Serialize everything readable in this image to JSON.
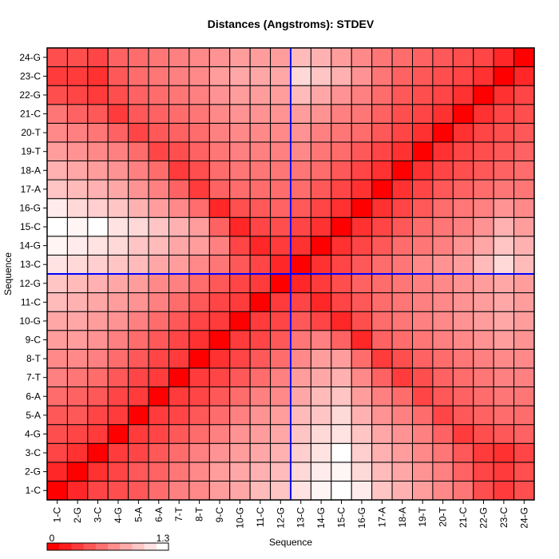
{
  "chart_data": {
    "type": "heatmap",
    "title": "Distances (Angstroms):  STDEV",
    "xlabel": "Sequence",
    "ylabel": "Sequence",
    "labels": [
      "1-C",
      "2-G",
      "3-C",
      "4-G",
      "5-A",
      "6-A",
      "7-T",
      "8-T",
      "9-C",
      "10-G",
      "11-C",
      "12-G",
      "13-C",
      "14-G",
      "15-C",
      "16-G",
      "17-A",
      "18-A",
      "19-T",
      "20-T",
      "21-C",
      "22-G",
      "23-C",
      "24-G"
    ],
    "value_range": [
      0,
      1.3
    ],
    "color_low": "#ff0000",
    "color_high": "#ffffff",
    "colorbar": {
      "min_label": "0",
      "max_label": "1.3"
    },
    "divider": {
      "after_index": 11,
      "color": "#0000ff"
    },
    "matrix": [
      [
        0.0,
        0.2,
        0.35,
        0.4,
        0.45,
        0.55,
        0.65,
        0.7,
        0.8,
        0.85,
        0.95,
        1.0,
        1.15,
        1.25,
        1.3,
        1.2,
        1.0,
        0.9,
        0.8,
        0.7,
        0.6,
        0.4,
        0.3,
        0.4
      ],
      [
        0.2,
        0.0,
        0.25,
        0.35,
        0.45,
        0.5,
        0.6,
        0.7,
        0.8,
        0.85,
        0.9,
        0.95,
        1.1,
        1.2,
        1.25,
        1.1,
        0.95,
        0.85,
        0.75,
        0.65,
        0.5,
        0.35,
        0.3,
        0.4
      ],
      [
        0.35,
        0.25,
        0.0,
        0.3,
        0.35,
        0.45,
        0.55,
        0.65,
        0.75,
        0.8,
        0.85,
        0.9,
        1.05,
        1.15,
        1.3,
        1.05,
        0.9,
        0.8,
        0.7,
        0.6,
        0.45,
        0.3,
        0.25,
        0.35
      ],
      [
        0.4,
        0.35,
        0.3,
        0.0,
        0.3,
        0.35,
        0.45,
        0.55,
        0.65,
        0.75,
        0.8,
        0.85,
        1.0,
        1.1,
        1.15,
        1.0,
        0.85,
        0.75,
        0.65,
        0.5,
        0.3,
        0.4,
        0.45,
        0.5
      ],
      [
        0.45,
        0.45,
        0.35,
        0.3,
        0.0,
        0.3,
        0.35,
        0.45,
        0.55,
        0.65,
        0.75,
        0.8,
        0.95,
        1.0,
        1.1,
        0.9,
        0.75,
        0.65,
        0.55,
        0.35,
        0.45,
        0.5,
        0.55,
        0.55
      ],
      [
        0.55,
        0.5,
        0.45,
        0.35,
        0.3,
        0.0,
        0.3,
        0.35,
        0.45,
        0.55,
        0.65,
        0.7,
        0.85,
        0.95,
        1.0,
        0.8,
        0.65,
        0.55,
        0.35,
        0.45,
        0.5,
        0.55,
        0.6,
        0.6
      ],
      [
        0.65,
        0.6,
        0.55,
        0.45,
        0.35,
        0.3,
        0.0,
        0.3,
        0.35,
        0.45,
        0.55,
        0.65,
        0.8,
        0.85,
        0.9,
        0.7,
        0.5,
        0.3,
        0.4,
        0.5,
        0.55,
        0.6,
        0.65,
        0.65
      ],
      [
        0.7,
        0.7,
        0.65,
        0.55,
        0.45,
        0.35,
        0.3,
        0.0,
        0.25,
        0.35,
        0.45,
        0.55,
        0.7,
        0.8,
        0.8,
        0.55,
        0.3,
        0.4,
        0.5,
        0.55,
        0.6,
        0.65,
        0.7,
        0.7
      ],
      [
        0.8,
        0.8,
        0.75,
        0.65,
        0.55,
        0.45,
        0.35,
        0.25,
        0.0,
        0.3,
        0.35,
        0.45,
        0.6,
        0.65,
        0.5,
        0.2,
        0.5,
        0.55,
        0.6,
        0.65,
        0.7,
        0.75,
        0.8,
        0.75
      ],
      [
        0.85,
        0.85,
        0.8,
        0.75,
        0.65,
        0.55,
        0.45,
        0.35,
        0.3,
        0.0,
        0.3,
        0.35,
        0.45,
        0.35,
        0.2,
        0.4,
        0.55,
        0.6,
        0.65,
        0.7,
        0.75,
        0.8,
        0.85,
        0.8
      ],
      [
        0.95,
        0.9,
        0.85,
        0.8,
        0.75,
        0.65,
        0.55,
        0.45,
        0.35,
        0.3,
        0.0,
        0.3,
        0.35,
        0.2,
        0.35,
        0.45,
        0.55,
        0.6,
        0.65,
        0.7,
        0.75,
        0.8,
        0.85,
        0.8
      ],
      [
        1.0,
        0.95,
        0.9,
        0.85,
        0.8,
        0.7,
        0.65,
        0.55,
        0.45,
        0.35,
        0.3,
        0.0,
        0.2,
        0.3,
        0.4,
        0.5,
        0.55,
        0.6,
        0.65,
        0.7,
        0.75,
        0.8,
        0.85,
        0.8
      ],
      [
        1.15,
        1.1,
        1.05,
        1.0,
        0.95,
        0.85,
        0.8,
        0.7,
        0.6,
        0.45,
        0.35,
        0.2,
        0.0,
        0.25,
        0.35,
        0.45,
        0.55,
        0.6,
        0.7,
        0.75,
        0.8,
        0.95,
        1.1,
        0.95
      ],
      [
        1.25,
        1.2,
        1.15,
        1.1,
        1.0,
        0.95,
        0.85,
        0.8,
        0.65,
        0.35,
        0.2,
        0.3,
        0.25,
        0.0,
        0.25,
        0.35,
        0.45,
        0.55,
        0.6,
        0.65,
        0.75,
        0.85,
        1.0,
        0.9
      ],
      [
        1.3,
        1.25,
        1.3,
        1.15,
        1.1,
        1.0,
        0.9,
        0.8,
        0.5,
        0.2,
        0.35,
        0.4,
        0.35,
        0.25,
        0.0,
        0.25,
        0.35,
        0.45,
        0.55,
        0.6,
        0.65,
        0.75,
        0.9,
        0.8
      ],
      [
        1.2,
        1.1,
        1.05,
        1.0,
        0.9,
        0.8,
        0.7,
        0.55,
        0.2,
        0.4,
        0.45,
        0.5,
        0.45,
        0.35,
        0.25,
        0.0,
        0.25,
        0.35,
        0.45,
        0.55,
        0.6,
        0.65,
        0.75,
        0.7
      ],
      [
        1.0,
        0.95,
        0.9,
        0.85,
        0.75,
        0.65,
        0.5,
        0.3,
        0.5,
        0.55,
        0.55,
        0.55,
        0.55,
        0.45,
        0.35,
        0.25,
        0.0,
        0.25,
        0.35,
        0.45,
        0.5,
        0.55,
        0.6,
        0.6
      ],
      [
        0.9,
        0.85,
        0.8,
        0.75,
        0.65,
        0.55,
        0.3,
        0.4,
        0.55,
        0.6,
        0.6,
        0.6,
        0.6,
        0.55,
        0.45,
        0.35,
        0.25,
        0.0,
        0.25,
        0.35,
        0.4,
        0.45,
        0.5,
        0.55
      ],
      [
        0.8,
        0.75,
        0.7,
        0.65,
        0.55,
        0.35,
        0.4,
        0.5,
        0.6,
        0.65,
        0.65,
        0.65,
        0.7,
        0.6,
        0.55,
        0.45,
        0.35,
        0.25,
        0.0,
        0.25,
        0.35,
        0.4,
        0.45,
        0.5
      ],
      [
        0.7,
        0.65,
        0.6,
        0.5,
        0.35,
        0.45,
        0.5,
        0.55,
        0.65,
        0.7,
        0.7,
        0.7,
        0.75,
        0.65,
        0.6,
        0.55,
        0.45,
        0.35,
        0.25,
        0.0,
        0.25,
        0.35,
        0.4,
        0.45
      ],
      [
        0.6,
        0.5,
        0.45,
        0.3,
        0.45,
        0.5,
        0.55,
        0.6,
        0.7,
        0.75,
        0.75,
        0.75,
        0.8,
        0.75,
        0.65,
        0.6,
        0.5,
        0.4,
        0.35,
        0.25,
        0.0,
        0.25,
        0.35,
        0.4
      ],
      [
        0.4,
        0.35,
        0.3,
        0.4,
        0.5,
        0.55,
        0.6,
        0.65,
        0.75,
        0.8,
        0.8,
        0.8,
        0.95,
        0.85,
        0.75,
        0.65,
        0.55,
        0.45,
        0.4,
        0.35,
        0.25,
        0.0,
        0.25,
        0.35
      ],
      [
        0.3,
        0.3,
        0.25,
        0.45,
        0.55,
        0.6,
        0.65,
        0.7,
        0.8,
        0.85,
        0.85,
        0.85,
        1.1,
        1.0,
        0.9,
        0.75,
        0.6,
        0.5,
        0.45,
        0.4,
        0.35,
        0.25,
        0.0,
        0.2
      ],
      [
        0.4,
        0.4,
        0.35,
        0.5,
        0.55,
        0.6,
        0.65,
        0.7,
        0.75,
        0.8,
        0.8,
        0.8,
        0.95,
        0.9,
        0.8,
        0.7,
        0.6,
        0.55,
        0.5,
        0.45,
        0.4,
        0.35,
        0.2,
        0.0
      ]
    ]
  }
}
